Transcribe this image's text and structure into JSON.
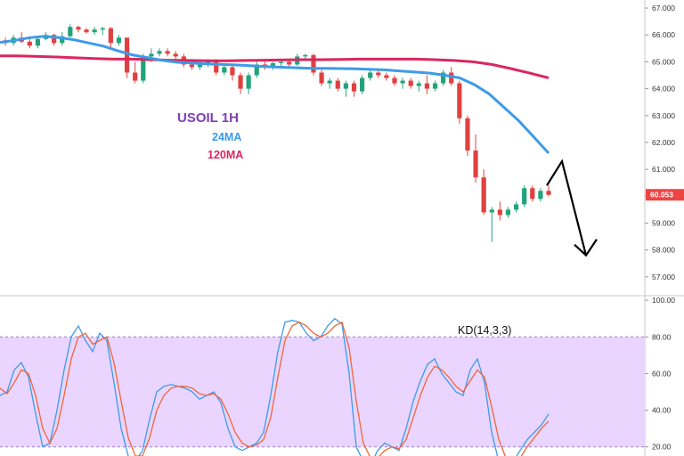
{
  "chart_data": [
    {
      "type": "candlestick",
      "title": "USOIL 1H",
      "indicator_labels": [
        {
          "text": "24MA",
          "color": "#3d9be9"
        },
        {
          "text": "120MA",
          "color": "#d9275f"
        }
      ],
      "ylim": [
        56.3,
        67.3
      ],
      "yticks": [
        "57.000",
        "58.000",
        "59.000",
        "60.000",
        "61.000",
        "62.000",
        "63.000",
        "64.000",
        "65.000",
        "66.000",
        "67.000"
      ],
      "current_price": "60.053",
      "current_price_color": "#ef4444",
      "up_color": "#22a37a",
      "down_color": "#e0413f",
      "candles": [
        [
          65.8,
          65.9,
          65.6,
          65.7
        ],
        [
          65.7,
          66.0,
          65.6,
          65.9
        ],
        [
          65.9,
          66.1,
          65.7,
          65.75
        ],
        [
          65.75,
          65.9,
          65.5,
          65.6
        ],
        [
          65.6,
          65.9,
          65.5,
          65.85
        ],
        [
          65.85,
          66.1,
          65.8,
          66.0
        ],
        [
          66.0,
          66.05,
          65.6,
          65.7
        ],
        [
          65.7,
          66.1,
          65.6,
          65.95
        ],
        [
          65.95,
          66.4,
          65.9,
          66.3
        ],
        [
          66.3,
          66.35,
          66.1,
          66.2
        ],
        [
          66.2,
          66.25,
          66.05,
          66.1
        ],
        [
          66.1,
          66.3,
          66.0,
          66.2
        ],
        [
          66.2,
          66.3,
          66.0,
          66.25
        ],
        [
          66.25,
          66.3,
          65.5,
          65.7
        ],
        [
          65.7,
          66.0,
          65.6,
          65.9
        ],
        [
          65.9,
          65.9,
          64.4,
          64.6
        ],
        [
          64.6,
          65.0,
          64.2,
          64.3
        ],
        [
          64.3,
          65.3,
          64.2,
          65.2
        ],
        [
          65.2,
          65.5,
          65.0,
          65.3
        ],
        [
          65.3,
          65.5,
          65.2,
          65.4
        ],
        [
          65.4,
          65.5,
          65.2,
          65.3
        ],
        [
          65.3,
          65.4,
          65.1,
          65.2
        ],
        [
          65.2,
          65.3,
          64.8,
          64.9
        ],
        [
          64.9,
          65.0,
          64.7,
          64.8
        ],
        [
          64.8,
          65.0,
          64.7,
          64.9
        ],
        [
          64.9,
          65.1,
          64.8,
          65.0
        ],
        [
          65.0,
          65.1,
          64.5,
          64.6
        ],
        [
          64.6,
          64.9,
          64.5,
          64.8
        ],
        [
          64.8,
          64.9,
          64.3,
          64.5
        ],
        [
          64.5,
          64.6,
          63.8,
          64.0
        ],
        [
          64.0,
          64.6,
          63.8,
          64.5
        ],
        [
          64.5,
          65.0,
          64.4,
          64.9
        ],
        [
          64.9,
          65.1,
          64.7,
          64.8
        ],
        [
          64.8,
          65.0,
          64.7,
          64.95
        ],
        [
          64.95,
          65.1,
          64.85,
          65.0
        ],
        [
          65.0,
          65.1,
          64.8,
          64.9
        ],
        [
          64.9,
          65.3,
          64.85,
          65.2
        ],
        [
          65.2,
          65.3,
          65.1,
          65.25
        ],
        [
          65.25,
          65.3,
          64.5,
          64.6
        ],
        [
          64.6,
          64.7,
          64.1,
          64.2
        ],
        [
          64.2,
          64.4,
          64.0,
          64.3
        ],
        [
          64.3,
          64.4,
          63.9,
          64.0
        ],
        [
          64.0,
          64.3,
          63.7,
          64.2
        ],
        [
          64.2,
          64.3,
          63.7,
          63.9
        ],
        [
          63.9,
          64.5,
          63.8,
          64.4
        ],
        [
          64.4,
          64.7,
          64.3,
          64.6
        ],
        [
          64.6,
          64.7,
          64.4,
          64.5
        ],
        [
          64.5,
          64.6,
          64.3,
          64.4
        ],
        [
          64.4,
          64.5,
          64.1,
          64.2
        ],
        [
          64.2,
          64.4,
          64.0,
          64.3
        ],
        [
          64.3,
          64.4,
          64.0,
          64.1
        ],
        [
          64.1,
          64.3,
          63.9,
          64.2
        ],
        [
          64.2,
          64.5,
          63.8,
          64.0
        ],
        [
          64.0,
          64.3,
          63.9,
          64.2
        ],
        [
          64.2,
          64.7,
          64.1,
          64.6
        ],
        [
          64.6,
          64.8,
          64.1,
          64.2
        ],
        [
          64.2,
          64.3,
          62.7,
          62.9
        ],
        [
          62.9,
          63.0,
          61.5,
          61.7
        ],
        [
          61.7,
          62.3,
          60.5,
          60.7
        ],
        [
          60.7,
          61.0,
          59.3,
          59.4
        ],
        [
          59.4,
          59.6,
          58.3,
          59.5
        ],
        [
          59.5,
          59.8,
          59.1,
          59.3
        ],
        [
          59.3,
          59.6,
          59.2,
          59.5
        ],
        [
          59.5,
          59.8,
          59.4,
          59.7
        ],
        [
          59.7,
          60.4,
          59.6,
          60.3
        ],
        [
          60.3,
          60.4,
          59.8,
          59.9
        ],
        [
          59.9,
          60.3,
          59.8,
          60.2
        ],
        [
          60.2,
          60.4,
          60.0,
          60.053
        ]
      ],
      "ma24": [
        65.72,
        65.8,
        65.9,
        65.95,
        65.9,
        65.82,
        65.7,
        65.58,
        65.4,
        65.25,
        65.15,
        65.05,
        64.98,
        64.95,
        64.92,
        64.9,
        64.88,
        64.85,
        64.82,
        64.8,
        64.78,
        64.76,
        64.76,
        64.75,
        64.74,
        64.72,
        64.7,
        64.66,
        64.62,
        64.58,
        64.5,
        64.4,
        64.15,
        63.8,
        63.3,
        62.8,
        62.2,
        61.6
      ],
      "ma120": [
        65.22,
        65.22,
        65.2,
        65.18,
        65.15,
        65.12,
        65.1,
        65.1,
        65.08,
        65.06,
        65.05,
        65.04,
        65.04,
        65.05,
        65.06,
        65.07,
        65.08,
        65.08,
        65.09,
        65.1,
        65.1,
        65.1,
        65.1,
        65.08,
        65.05,
        65.0,
        64.9,
        64.75,
        64.58,
        64.4
      ],
      "forecast_arrow": {
        "from": 60.4,
        "peak": 61.3,
        "to": 57.8
      }
    },
    {
      "type": "line",
      "title": "KD(14,3,3)",
      "ylim": [
        15,
        102
      ],
      "yticks": [
        "20.00",
        "40.00",
        "60.00",
        "80.00",
        "100.00"
      ],
      "band": [
        20,
        80
      ],
      "band_color": "#e9d5ff",
      "series": [
        {
          "color": "#3d9be9",
          "values": [
            48,
            50,
            62,
            66,
            58,
            38,
            20,
            22,
            40,
            62,
            80,
            86,
            78,
            72,
            82,
            78,
            55,
            30,
            15,
            12,
            18,
            35,
            50,
            53,
            54,
            53,
            52,
            50,
            46,
            48,
            50,
            44,
            30,
            20,
            18,
            20,
            22,
            28,
            48,
            72,
            88,
            89,
            88,
            82,
            78,
            80,
            86,
            90,
            87,
            60,
            20,
            12,
            10,
            18,
            22,
            20,
            18,
            30,
            45,
            56,
            65,
            68,
            60,
            55,
            50,
            48,
            62,
            68,
            55,
            28,
            12,
            10,
            12,
            18,
            24,
            28,
            32,
            38
          ]
        },
        {
          "color": "#f0653a",
          "values": [
            52,
            49,
            55,
            62,
            60,
            48,
            30,
            22,
            30,
            48,
            68,
            80,
            82,
            76,
            78,
            80,
            66,
            45,
            25,
            15,
            15,
            25,
            40,
            48,
            52,
            53,
            53,
            52,
            49,
            48,
            49,
            46,
            38,
            28,
            22,
            20,
            21,
            24,
            36,
            58,
            78,
            86,
            88,
            86,
            82,
            80,
            82,
            86,
            88,
            74,
            45,
            22,
            14,
            14,
            18,
            20,
            19,
            24,
            36,
            48,
            58,
            64,
            62,
            58,
            53,
            50,
            56,
            62,
            58,
            42,
            24,
            14,
            12,
            14,
            20,
            25,
            30,
            34
          ]
        }
      ]
    }
  ]
}
